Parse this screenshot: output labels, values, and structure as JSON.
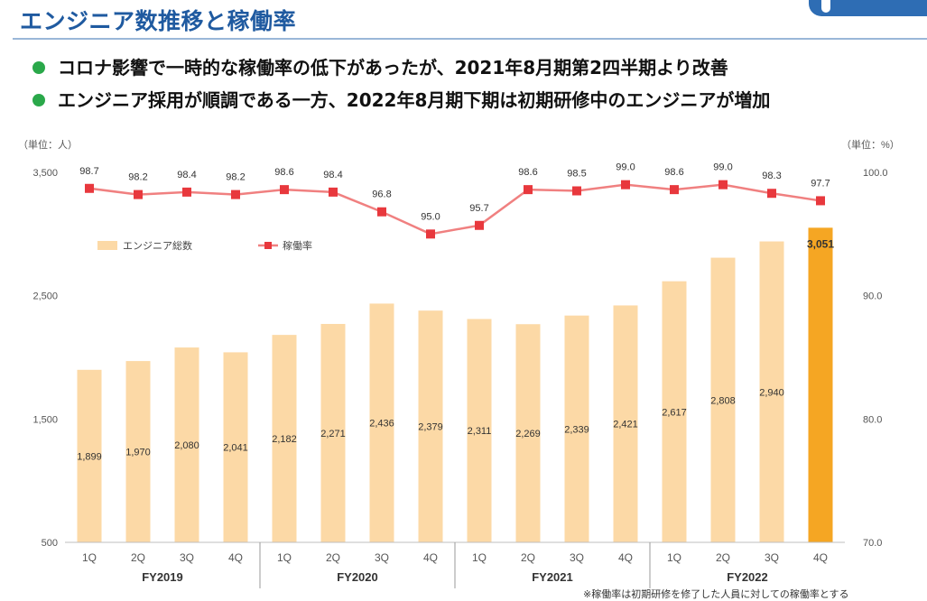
{
  "header": {
    "title": "エンジニア数推移と稼働率"
  },
  "bullets": [
    "コロナ影響で一時的な稼働率の低下があったが、2021年8月期第2四半期より改善",
    "エンジニア採用が順調である一方、2022年8月期下期は初期研修中のエンジニアが増加"
  ],
  "chart_data": {
    "type": "bar",
    "categories": [
      "1Q",
      "2Q",
      "3Q",
      "4Q",
      "1Q",
      "2Q",
      "3Q",
      "4Q",
      "1Q",
      "2Q",
      "3Q",
      "4Q",
      "1Q",
      "2Q",
      "3Q",
      "4Q"
    ],
    "groups": [
      {
        "label": "FY2019",
        "start": 0,
        "end": 3
      },
      {
        "label": "FY2020",
        "start": 4,
        "end": 7
      },
      {
        "label": "FY2021",
        "start": 8,
        "end": 11
      },
      {
        "label": "FY2022",
        "start": 12,
        "end": 15
      }
    ],
    "series": [
      {
        "name": "エンジニア総数",
        "type": "bar",
        "axis": "left",
        "values": [
          1899,
          1970,
          2080,
          2041,
          2182,
          2271,
          2436,
          2379,
          2311,
          2269,
          2339,
          2421,
          2617,
          2808,
          2940,
          3051
        ],
        "labels": [
          "1,899",
          "1,970",
          "2,080",
          "2,041",
          "2,182",
          "2,271",
          "2,436",
          "2,379",
          "2,311",
          "2,269",
          "2,339",
          "2,421",
          "2,617",
          "2,808",
          "2,940",
          "3,051"
        ],
        "color": "#fcd9a6",
        "highlight_color": "#f5a623",
        "highlight_index": 15
      },
      {
        "name": "稼働率",
        "type": "line",
        "axis": "right",
        "values": [
          98.7,
          98.2,
          98.4,
          98.2,
          98.6,
          98.4,
          96.8,
          95.0,
          95.7,
          98.6,
          98.5,
          99.0,
          98.6,
          99.0,
          98.3,
          97.7
        ],
        "labels": [
          "98.7",
          "98.2",
          "98.4",
          "98.2",
          "98.6",
          "98.4",
          "96.8",
          "95.0",
          "95.7",
          "98.6",
          "98.5",
          "99.0",
          "98.6",
          "99.0",
          "98.3",
          "97.7"
        ],
        "color": "#f08080",
        "marker_color": "#e8383d"
      }
    ],
    "y_left": {
      "unit_label": "（単位：人）",
      "ylim": [
        500,
        3500
      ],
      "ticks": [
        500,
        1500,
        2500,
        3500
      ],
      "tick_labels": [
        "500",
        "1,500",
        "2,500",
        "3,500"
      ]
    },
    "y_right": {
      "unit_label": "（単位：%）",
      "ylim": [
        70,
        100
      ],
      "ticks": [
        70,
        80,
        90,
        100
      ],
      "tick_labels": [
        "70.0",
        "80.0",
        "90.0",
        "100.0"
      ]
    },
    "legend_position": "top-left",
    "grid": false
  },
  "footnote": "※稼働率は初期研修を修了した人員に対しての稼働率とする"
}
